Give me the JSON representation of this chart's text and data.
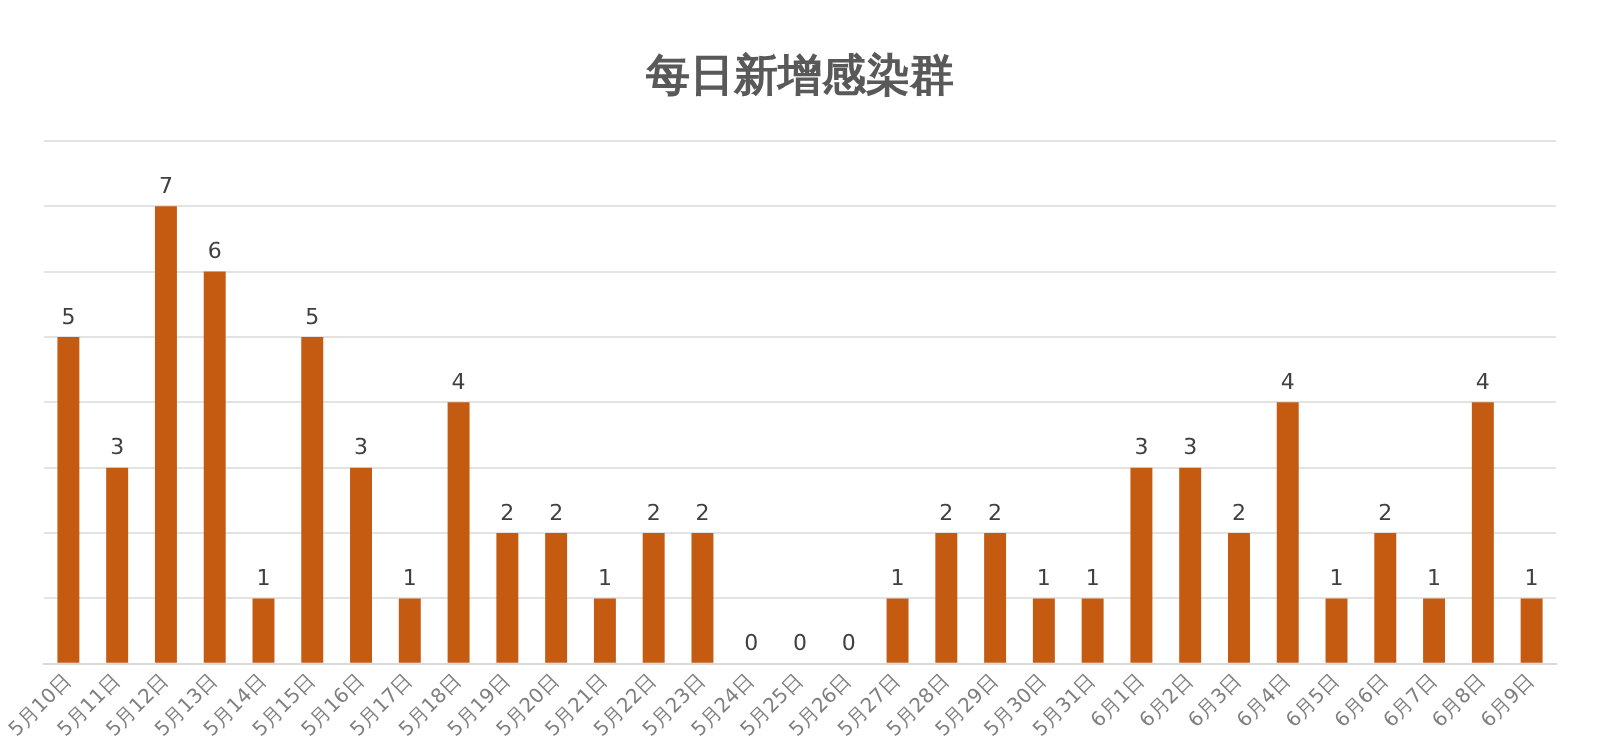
{
  "chart_data": {
    "type": "bar",
    "title": "每日新增感染群",
    "categories": [
      "5月10日",
      "5月11日",
      "5月12日",
      "5月13日",
      "5月14日",
      "5月15日",
      "5月16日",
      "5月17日",
      "5月18日",
      "5月19日",
      "5月20日",
      "5月21日",
      "5月22日",
      "5月23日",
      "5月24日",
      "5月25日",
      "5月26日",
      "5月27日",
      "5月28日",
      "5月29日",
      "5月30日",
      "5月31日",
      "6月1日",
      "6月2日",
      "6月3日",
      "6月4日",
      "6月5日",
      "6月6日",
      "6月7日",
      "6月8日",
      "6月9日"
    ],
    "values": [
      5,
      3,
      7,
      6,
      1,
      5,
      3,
      1,
      4,
      2,
      2,
      1,
      2,
      2,
      0,
      0,
      0,
      1,
      2,
      2,
      1,
      1,
      3,
      3,
      2,
      4,
      1,
      2,
      1,
      4,
      1
    ],
    "color": "#c55a11",
    "ylim": [
      0,
      8
    ],
    "yticks": [
      {
        "value": 0,
        "label": null
      },
      {
        "value": 1,
        "label": null
      },
      {
        "value": 2,
        "label": null
      },
      {
        "value": 3,
        "label": null
      },
      {
        "value": 4,
        "label": null
      },
      {
        "value": 5,
        "label": null
      },
      {
        "value": 6,
        "label": null
      },
      {
        "value": 7,
        "label": null
      },
      {
        "value": 8,
        "label": null
      }
    ],
    "grid": "y",
    "tick_labels": "x",
    "data_labels": true
  }
}
